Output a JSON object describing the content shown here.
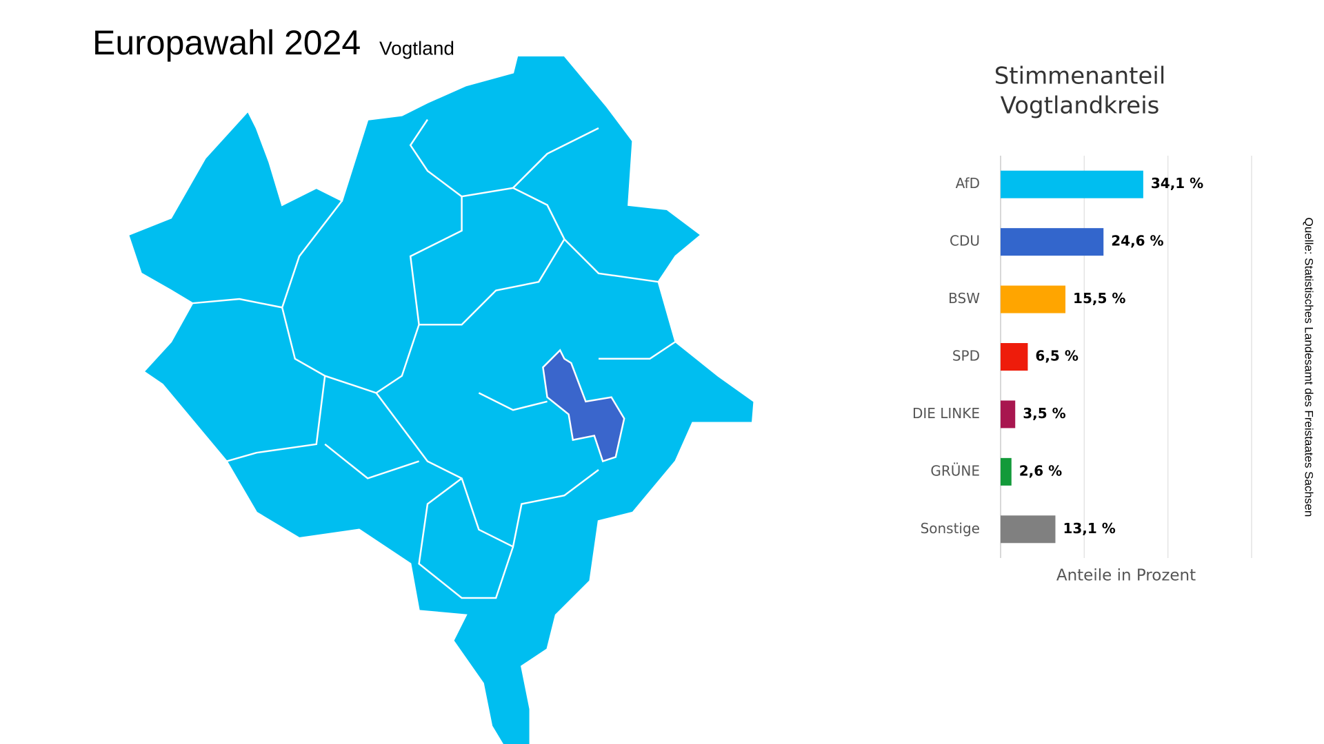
{
  "header": {
    "title": "Europawahl 2024",
    "subtitle": "Vogtland"
  },
  "source": "Quelle: Statistisches Landesamt des Freistaates Sachsen",
  "chart_data": {
    "type": "hbar",
    "title_lines": [
      "Stimmenanteil",
      "Vogtlandkreis"
    ],
    "x_label": "Anteile in Prozent",
    "categories": [
      "AfD",
      "CDU",
      "BSW",
      "SPD",
      "DIE LINKE",
      "GRÜNE",
      "Sonstige"
    ],
    "values": [
      34.1,
      24.6,
      15.5,
      6.5,
      3.5,
      2.6,
      13.1
    ],
    "value_labels": [
      "34,1 %",
      "24,6 %",
      "15,5 %",
      "6,5 %",
      "3,5 %",
      "2,6 %",
      "13,1 %"
    ],
    "colors": [
      "#00bef0",
      "#3366cc",
      "#ffa500",
      "#ee1c0b",
      "#a8164f",
      "#139a3a",
      "#808080"
    ],
    "xlim": [
      0,
      60
    ],
    "xticks": [
      0,
      20,
      40,
      60
    ],
    "grid": true
  }
}
